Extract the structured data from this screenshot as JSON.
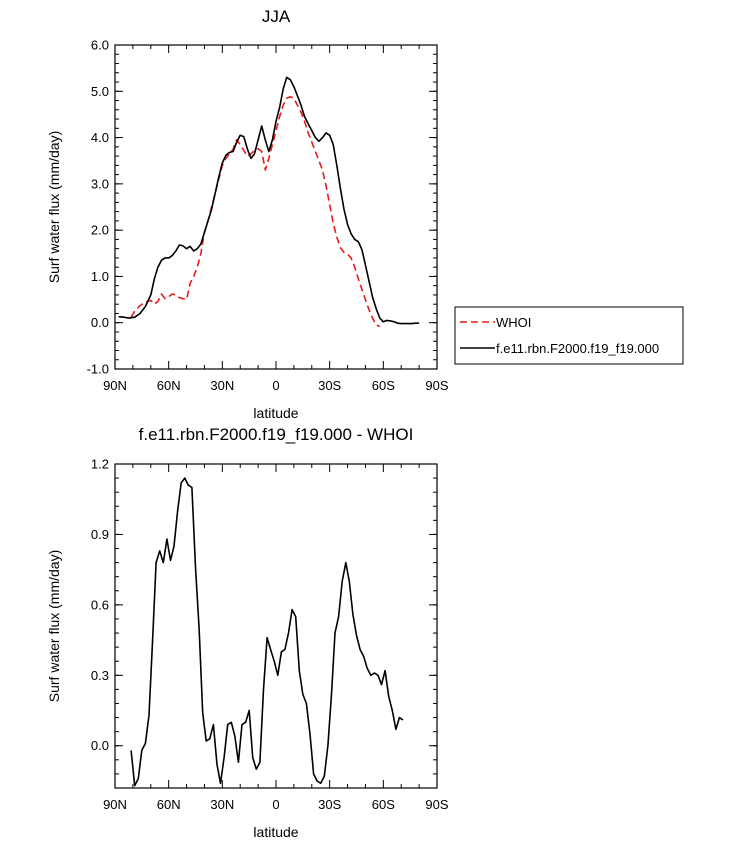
{
  "chart_data": [
    {
      "type": "line",
      "title": "JJA",
      "xlabel": "latitude",
      "ylabel": "Surf water flux (mm/day)",
      "xlim": [
        90,
        -90
      ],
      "ylim": [
        -1.0,
        6.0
      ],
      "x_ticks": [
        90,
        60,
        30,
        0,
        -30,
        -60,
        -90
      ],
      "x_tick_labels": [
        "90N",
        "60N",
        "30N",
        "0",
        "30S",
        "60S",
        "90S"
      ],
      "y_ticks": [
        -1.0,
        0.0,
        1.0,
        2.0,
        3.0,
        4.0,
        5.0,
        6.0
      ],
      "y_tick_labels": [
        "-1.0",
        "0.0",
        "1.0",
        "2.0",
        "3.0",
        "4.0",
        "5.0",
        "6.0"
      ],
      "grid": false,
      "legend": "right",
      "series": [
        {
          "name": "WHOI",
          "color": "#e8191b",
          "dash": "dashed",
          "x": [
            81,
            79,
            76,
            73,
            70,
            68,
            66,
            64,
            62,
            60,
            58,
            56,
            54,
            52,
            50,
            48,
            46,
            44,
            42,
            40,
            38,
            36,
            34,
            32,
            30,
            28,
            26,
            24,
            22,
            20,
            18,
            16,
            14,
            12,
            10,
            8,
            6,
            4,
            2,
            0,
            -2,
            -4,
            -6,
            -8,
            -10,
            -12,
            -14,
            -16,
            -18,
            -20,
            -22,
            -24,
            -26,
            -28,
            -30,
            -32,
            -34,
            -36,
            -38,
            -40,
            -42,
            -44,
            -46,
            -48,
            -50,
            -52,
            -54,
            -56,
            -58,
            -60,
            -62,
            -64,
            -66,
            -68,
            -70,
            -72
          ],
          "values": [
            0.12,
            0.25,
            0.37,
            0.45,
            0.48,
            0.4,
            0.46,
            0.62,
            0.52,
            0.56,
            0.62,
            0.6,
            0.54,
            0.52,
            0.5,
            0.85,
            1.0,
            1.2,
            1.5,
            1.95,
            2.2,
            2.5,
            2.8,
            3.1,
            3.4,
            3.55,
            3.65,
            3.75,
            3.95,
            3.85,
            3.72,
            3.6,
            3.65,
            3.72,
            3.76,
            3.7,
            3.3,
            3.55,
            3.85,
            4.15,
            4.45,
            4.7,
            4.85,
            4.88,
            4.85,
            4.7,
            4.55,
            4.35,
            4.1,
            3.9,
            3.7,
            3.5,
            3.3,
            2.95,
            2.55,
            2.15,
            1.85,
            1.62,
            1.52,
            1.48,
            1.4,
            1.2,
            0.95,
            0.72,
            0.5,
            0.28,
            0.1,
            -0.05,
            -0.08,
            null,
            null,
            null,
            null,
            null,
            null,
            null
          ]
        },
        {
          "name": "f.e11.rbn.F2000.f19_f19.000",
          "color": "#000000",
          "dash": "solid",
          "x": [
            88,
            85,
            82,
            79,
            76,
            73,
            70,
            68,
            66,
            64,
            62,
            60,
            58,
            56,
            54,
            52,
            50,
            48,
            46,
            44,
            42,
            40,
            38,
            36,
            34,
            32,
            30,
            28,
            26,
            24,
            22,
            20,
            18,
            16,
            14,
            12,
            10,
            8,
            6,
            4,
            2,
            0,
            -2,
            -4,
            -6,
            -8,
            -10,
            -12,
            -14,
            -16,
            -18,
            -20,
            -22,
            -24,
            -26,
            -28,
            -30,
            -32,
            -34,
            -36,
            -38,
            -40,
            -42,
            -44,
            -46,
            -48,
            -50,
            -52,
            -54,
            -56,
            -58,
            -60,
            -62,
            -64,
            -66,
            -68,
            -70,
            -72,
            -74,
            -76,
            -78,
            -80,
            -82,
            -84,
            -86,
            -88
          ],
          "values": [
            0.13,
            0.12,
            0.1,
            0.12,
            0.2,
            0.35,
            0.6,
            0.95,
            1.2,
            1.35,
            1.4,
            1.4,
            1.45,
            1.55,
            1.68,
            1.66,
            1.6,
            1.65,
            1.55,
            1.6,
            1.7,
            1.95,
            2.2,
            2.45,
            2.8,
            3.15,
            3.45,
            3.62,
            3.68,
            3.7,
            3.9,
            4.05,
            4.02,
            3.75,
            3.55,
            3.65,
            3.95,
            4.25,
            3.95,
            3.7,
            3.95,
            4.35,
            4.65,
            5.05,
            5.3,
            5.25,
            5.1,
            4.9,
            4.7,
            4.45,
            4.3,
            4.15,
            4.0,
            3.92,
            4.0,
            4.1,
            4.05,
            3.85,
            3.4,
            2.9,
            2.45,
            2.12,
            1.92,
            1.8,
            1.75,
            1.58,
            1.25,
            0.9,
            0.55,
            0.3,
            0.1,
            0.02,
            0.05,
            0.04,
            0.02,
            -0.01,
            -0.02,
            -0.02,
            -0.02,
            -0.02,
            -0.01,
            -0.01,
            null,
            null,
            null,
            null
          ]
        }
      ]
    },
    {
      "type": "line",
      "title": "f.e11.rbn.F2000.f19_f19.000 - WHOI",
      "xlabel": "latitude",
      "ylabel": "Surf water flux (mm/day)",
      "xlim": [
        90,
        -90
      ],
      "ylim": [
        -0.18,
        1.2
      ],
      "x_ticks": [
        90,
        60,
        30,
        0,
        -30,
        -60,
        -90
      ],
      "x_tick_labels": [
        "90N",
        "60N",
        "30N",
        "0",
        "30S",
        "60S",
        "90S"
      ],
      "y_ticks": [
        0.0,
        0.3,
        0.6,
        0.9,
        1.2
      ],
      "y_tick_labels": [
        "0.0",
        "0.3",
        "0.6",
        "0.9",
        "1.2"
      ],
      "grid": false,
      "series": [
        {
          "color": "#000000",
          "dash": "solid",
          "x": [
            81,
            79,
            77,
            75,
            73,
            71,
            69,
            67,
            65,
            63,
            61,
            59,
            57,
            55,
            53,
            51,
            49,
            47,
            45,
            43,
            41,
            39,
            37,
            35,
            33,
            31,
            29,
            27,
            25,
            23,
            21,
            19,
            17,
            15,
            13,
            11,
            9,
            7,
            5,
            3,
            1,
            -1,
            -3,
            -5,
            -7,
            -9,
            -11,
            -13,
            -15,
            -17,
            -19,
            -21,
            -23,
            -25,
            -27,
            -29,
            -31,
            -33,
            -35,
            -37,
            -39,
            -41,
            -43,
            -45,
            -47,
            -49,
            -51,
            -53,
            -55,
            -57,
            -59,
            -61,
            -63,
            -65,
            -67,
            -69,
            -71
          ],
          "values": [
            -0.02,
            -0.17,
            -0.14,
            -0.02,
            0.01,
            0.13,
            0.45,
            0.78,
            0.83,
            0.78,
            0.88,
            0.79,
            0.85,
            1.0,
            1.12,
            1.14,
            1.11,
            1.1,
            0.76,
            0.5,
            0.14,
            0.02,
            0.03,
            0.09,
            -0.08,
            -0.16,
            -0.05,
            0.09,
            0.1,
            0.04,
            -0.07,
            0.09,
            0.1,
            0.15,
            -0.05,
            -0.1,
            -0.07,
            0.24,
            0.46,
            0.41,
            0.36,
            0.3,
            0.4,
            0.41,
            0.48,
            0.58,
            0.55,
            0.32,
            0.22,
            0.18,
            0.05,
            -0.12,
            -0.15,
            -0.16,
            -0.13,
            0.0,
            0.22,
            0.48,
            0.55,
            0.7,
            0.78,
            0.7,
            0.56,
            0.47,
            0.41,
            0.38,
            0.33,
            0.3,
            0.31,
            0.3,
            0.26,
            0.32,
            0.21,
            0.15,
            0.07,
            0.12,
            0.11
          ]
        }
      ]
    }
  ]
}
